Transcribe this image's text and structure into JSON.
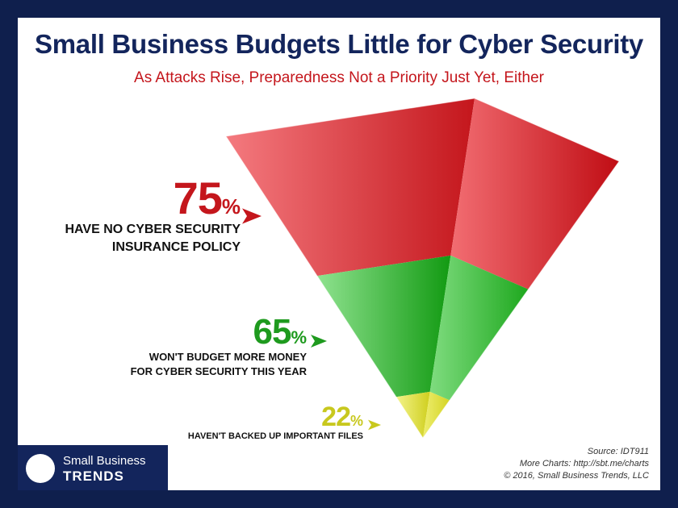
{
  "header": {
    "title": "Small Business Budgets Little for Cyber Security",
    "subtitle": "As Attacks Rise, Preparedness Not a Priority Just Yet, Either"
  },
  "chart_data": {
    "type": "funnel",
    "stages": [
      {
        "value": 75,
        "label_line1": "HAVE NO CYBER SECURITY",
        "label_line2": "INSURANCE POLICY",
        "color": "#e8343b"
      },
      {
        "value": 65,
        "label_line1": "WON'T BUDGET MORE MONEY",
        "label_line2": "FOR CYBER SECURITY THIS YEAR",
        "color": "#2fae2f"
      },
      {
        "value": 22,
        "label_line1": "HAVEN'T BACKED UP IMPORTANT FILES",
        "label_line2": "",
        "color": "#d8d832"
      }
    ],
    "value_suffix": "%"
  },
  "source": {
    "line1": "Source: IDT911",
    "line2": "More Charts: http://sbt.me/charts",
    "line3": "© 2016, Small Business Trends, LLC"
  },
  "brand": {
    "line1": "Small Business",
    "line2": "TRENDS"
  },
  "colors": {
    "background": "#0f1f4d",
    "title": "#13255c",
    "subtitle": "#c4161c",
    "red_text": "#c4161c",
    "green_text": "#1e9a1e",
    "yellow_text": "#c8c81e"
  }
}
